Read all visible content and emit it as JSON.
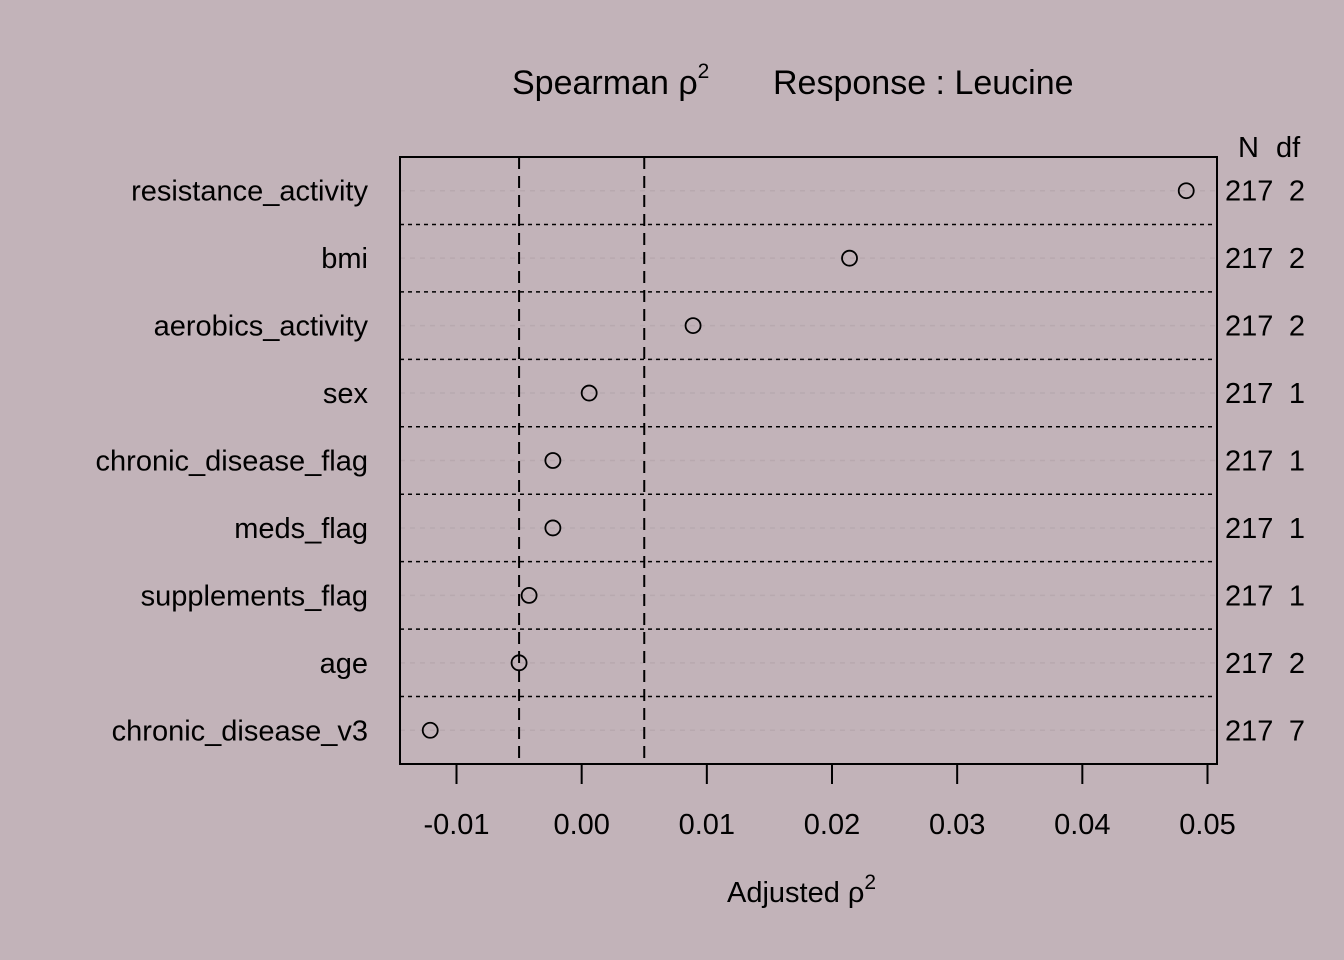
{
  "chart_data": {
    "type": "scatter",
    "title": {
      "prefix": "Spearman ",
      "symbol": "ρ",
      "superscript": "2",
      "response_label": "Response : Leucine"
    },
    "xlabel": {
      "text": "Adjusted ",
      "symbol": "ρ",
      "superscript": "2"
    },
    "xlim": [
      -0.0145,
      0.0505
    ],
    "xticks": [
      -0.01,
      0.0,
      0.01,
      0.02,
      0.03,
      0.04,
      0.05
    ],
    "xtick_labels": [
      "-0.01",
      "0.00",
      "0.01",
      "0.02",
      "0.03",
      "0.04",
      "0.05"
    ],
    "reference_lines": [
      -0.005,
      0.005
    ],
    "right_header": {
      "n": "N",
      "df": "df"
    },
    "series": [
      {
        "points": [
          {
            "label": "resistance_activity",
            "value": 0.0483,
            "n": "217",
            "df": "2"
          },
          {
            "label": "bmi",
            "value": 0.0214,
            "n": "217",
            "df": "2"
          },
          {
            "label": "aerobics_activity",
            "value": 0.0089,
            "n": "217",
            "df": "2"
          },
          {
            "label": "sex",
            "value": 0.0006,
            "n": "217",
            "df": "1"
          },
          {
            "label": "chronic_disease_flag",
            "value": -0.0023,
            "n": "217",
            "df": "1"
          },
          {
            "label": "meds_flag",
            "value": -0.0023,
            "n": "217",
            "df": "1"
          },
          {
            "label": "supplements_flag",
            "value": -0.0042,
            "n": "217",
            "df": "1"
          },
          {
            "label": "age",
            "value": -0.005,
            "n": "217",
            "df": "2"
          },
          {
            "label": "chronic_disease_v3",
            "value": -0.0121,
            "n": "217",
            "df": "7"
          }
        ]
      }
    ],
    "grid": true
  }
}
